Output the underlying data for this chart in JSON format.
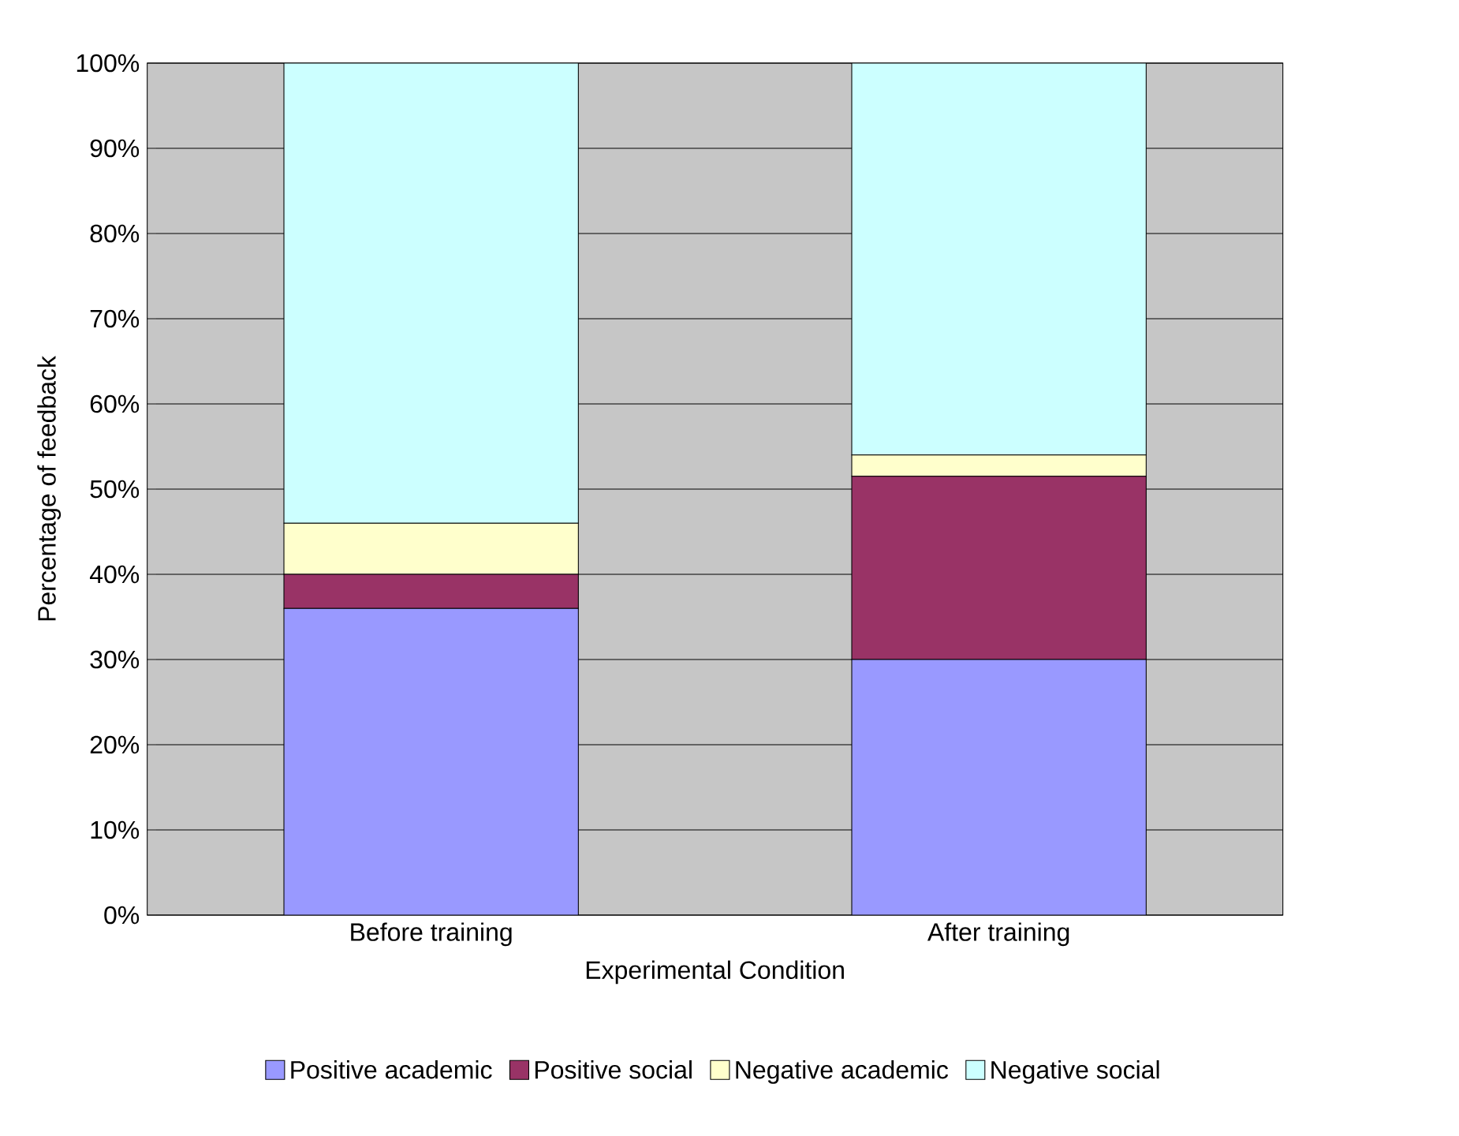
{
  "chart_data": {
    "type": "bar",
    "stacked": true,
    "xlabel": "Experimental Condition",
    "ylabel": "Percentage of feedback",
    "categories": [
      "Before training",
      "After training"
    ],
    "series": [
      {
        "name": "Positive academic",
        "color": "#9999ff",
        "values": [
          36,
          30
        ]
      },
      {
        "name": "Positive social",
        "color": "#993366",
        "values": [
          4,
          21.5
        ]
      },
      {
        "name": "Negative academic",
        "color": "#ffffcc",
        "values": [
          6,
          2.5
        ]
      },
      {
        "name": "Negative social",
        "color": "#ccffff",
        "values": [
          54,
          46
        ]
      }
    ],
    "ylim": [
      0,
      100
    ],
    "yticks": [
      {
        "value": 0,
        "label": "0%"
      },
      {
        "value": 10,
        "label": "10%"
      },
      {
        "value": 20,
        "label": "20%"
      },
      {
        "value": 30,
        "label": "30%"
      },
      {
        "value": 40,
        "label": "40%"
      },
      {
        "value": 50,
        "label": "50%"
      },
      {
        "value": 60,
        "label": "60%"
      },
      {
        "value": 70,
        "label": "70%"
      },
      {
        "value": 80,
        "label": "80%"
      },
      {
        "value": 90,
        "label": "90%"
      },
      {
        "value": 100,
        "label": "100%"
      }
    ],
    "grid": "y",
    "legend": "bottom"
  }
}
